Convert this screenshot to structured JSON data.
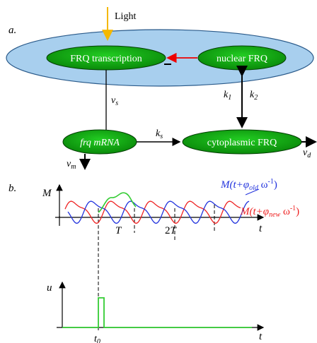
{
  "panel_a": {
    "letter": "a.",
    "light_label": "Light",
    "nodes": {
      "frq_transcription": "FRQ transcription",
      "nuclear_frq": "nuclear FRQ",
      "frq_mrna": "frq mRNA",
      "cytoplasmic_frq": "cytoplasmic FRQ"
    },
    "rates": {
      "vs": "v",
      "vs_sub": "s",
      "vm": "v",
      "vm_sub": "m",
      "vd": "v",
      "vd_sub": "d",
      "ks": "k",
      "ks_sub": "s",
      "k1": "k",
      "k1_sub": "1",
      "k2": "k",
      "k2_sub": "2"
    },
    "inhibition_mark": "–"
  },
  "panel_b": {
    "letter": "b.",
    "y_label": "M",
    "t_label": "t",
    "tick_T": "T",
    "tick_2T": "2T",
    "old_label_pre": "M(t+φ",
    "old_label_sub": "old",
    "old_label_post": " ω",
    "old_label_sup": "-1",
    "old_label_end": ")",
    "new_label_pre": "M(t+φ",
    "new_label_sub": "new",
    "new_label_post": " ω",
    "new_label_sup": "-1",
    "new_label_end": ")",
    "u_label": "u",
    "t0_label": "t",
    "t0_sub": "0",
    "colors": {
      "old": "#2233dd",
      "new": "#ee2222",
      "pulse": "#33cc33"
    }
  },
  "colors": {
    "ellipse": "#a8cfee",
    "node_fill": "#11aa11",
    "light_arrow": "#f5b800",
    "inhibition": "#ee0000"
  }
}
